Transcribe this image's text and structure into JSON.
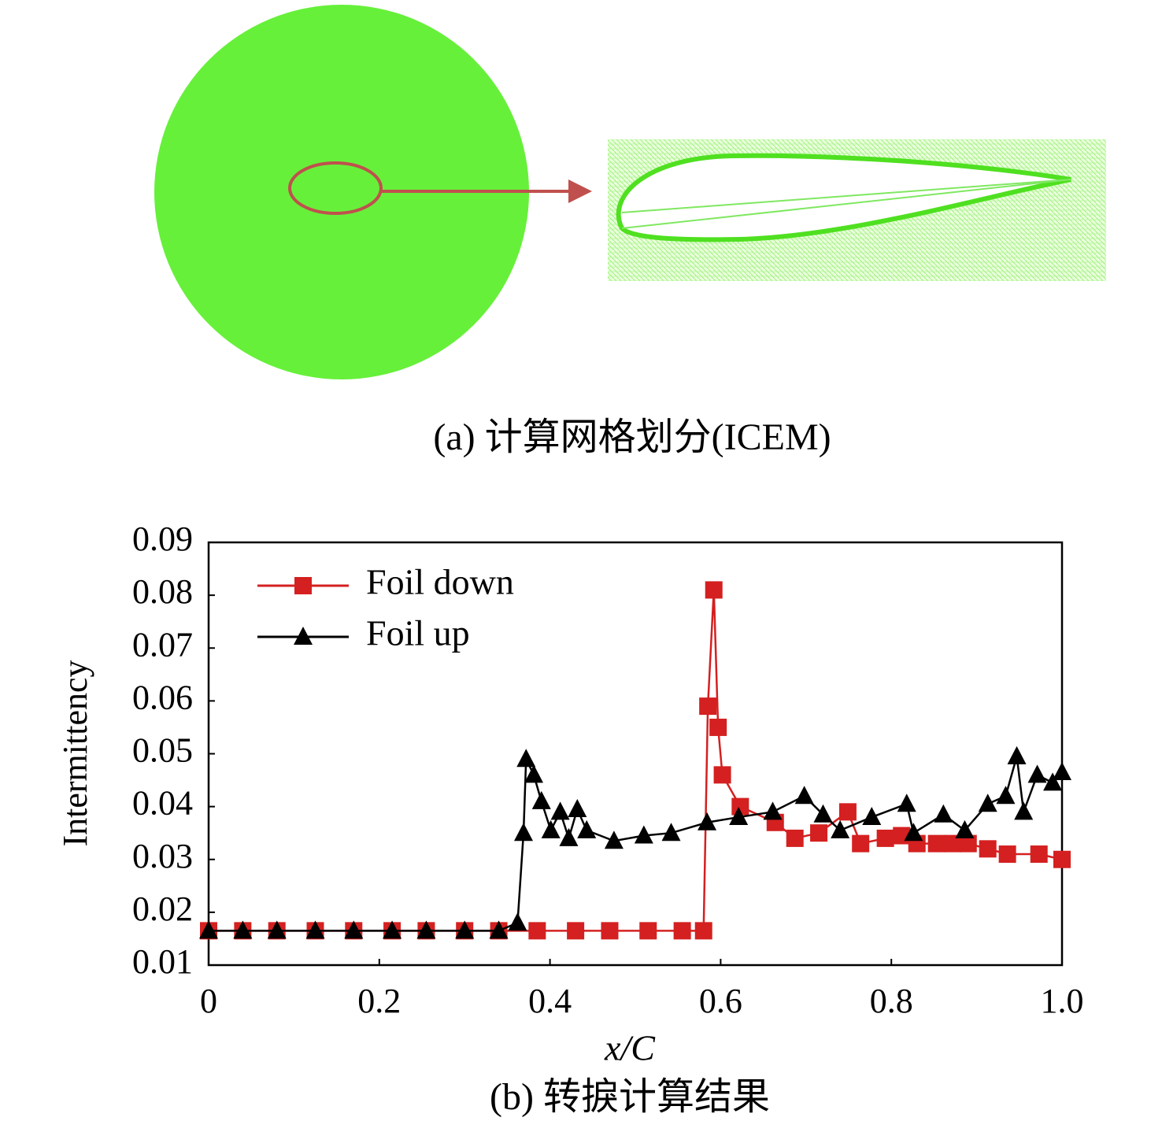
{
  "panel_a": {
    "caption": "(a) 计算网格划分(ICEM)"
  },
  "chart_data": {
    "type": "line",
    "caption": "(b) 转捩计算结果",
    "xlabel": "x/C",
    "ylabel": "Intermittency",
    "xlim": [
      0,
      1
    ],
    "xticks": [
      0,
      0.2,
      0.4,
      0.6,
      0.8,
      {
        "value": 1,
        "label": "1.0"
      }
    ],
    "ylim": [
      0.01,
      0.09
    ],
    "yticks": [
      0.01,
      0.02,
      0.03,
      0.04,
      0.05,
      0.06,
      0.07,
      0.08,
      0.09
    ],
    "legend": "upper left",
    "series": [
      {
        "name": "Foil down",
        "color": "#d42020",
        "marker": "square",
        "x": [
          0,
          0.04,
          0.08,
          0.125,
          0.17,
          0.215,
          0.255,
          0.3,
          0.34,
          0.385,
          0.43,
          0.47,
          0.515,
          0.555,
          0.58,
          0.585,
          0.592,
          0.597,
          0.602,
          0.623,
          0.664,
          0.687,
          0.715,
          0.749,
          0.764,
          0.793,
          0.812,
          0.83,
          0.853,
          0.872,
          0.89,
          0.913,
          0.936,
          0.973,
          1.0
        ],
        "values": [
          0.0165,
          0.0165,
          0.0165,
          0.0165,
          0.0165,
          0.0165,
          0.0165,
          0.0165,
          0.0165,
          0.0165,
          0.0165,
          0.0165,
          0.0165,
          0.0165,
          0.0165,
          0.059,
          0.081,
          0.055,
          0.046,
          0.04,
          0.037,
          0.034,
          0.035,
          0.039,
          0.033,
          0.034,
          0.0345,
          0.033,
          0.033,
          0.033,
          0.033,
          0.032,
          0.031,
          0.031,
          0.03
        ]
      },
      {
        "name": "Foil up",
        "color": "#000000",
        "marker": "triangle",
        "x": [
          0,
          0.04,
          0.08,
          0.125,
          0.17,
          0.215,
          0.255,
          0.3,
          0.34,
          0.362,
          0.369,
          0.372,
          0.381,
          0.39,
          0.401,
          0.412,
          0.422,
          0.432,
          0.443,
          0.475,
          0.51,
          0.542,
          0.584,
          0.621,
          0.661,
          0.698,
          0.72,
          0.74,
          0.777,
          0.818,
          0.826,
          0.861,
          0.886,
          0.913,
          0.934,
          0.947,
          0.955,
          0.971,
          0.989,
          1.0
        ],
        "values": [
          0.0165,
          0.0165,
          0.0165,
          0.0165,
          0.0165,
          0.0165,
          0.0165,
          0.0165,
          0.0165,
          0.018,
          0.035,
          0.049,
          0.046,
          0.041,
          0.0355,
          0.039,
          0.034,
          0.0395,
          0.0355,
          0.0335,
          0.0345,
          0.035,
          0.037,
          0.038,
          0.039,
          0.042,
          0.0385,
          0.0355,
          0.038,
          0.0405,
          0.035,
          0.0385,
          0.0355,
          0.0405,
          0.042,
          0.0495,
          0.039,
          0.046,
          0.0445,
          0.0465
        ]
      }
    ]
  }
}
